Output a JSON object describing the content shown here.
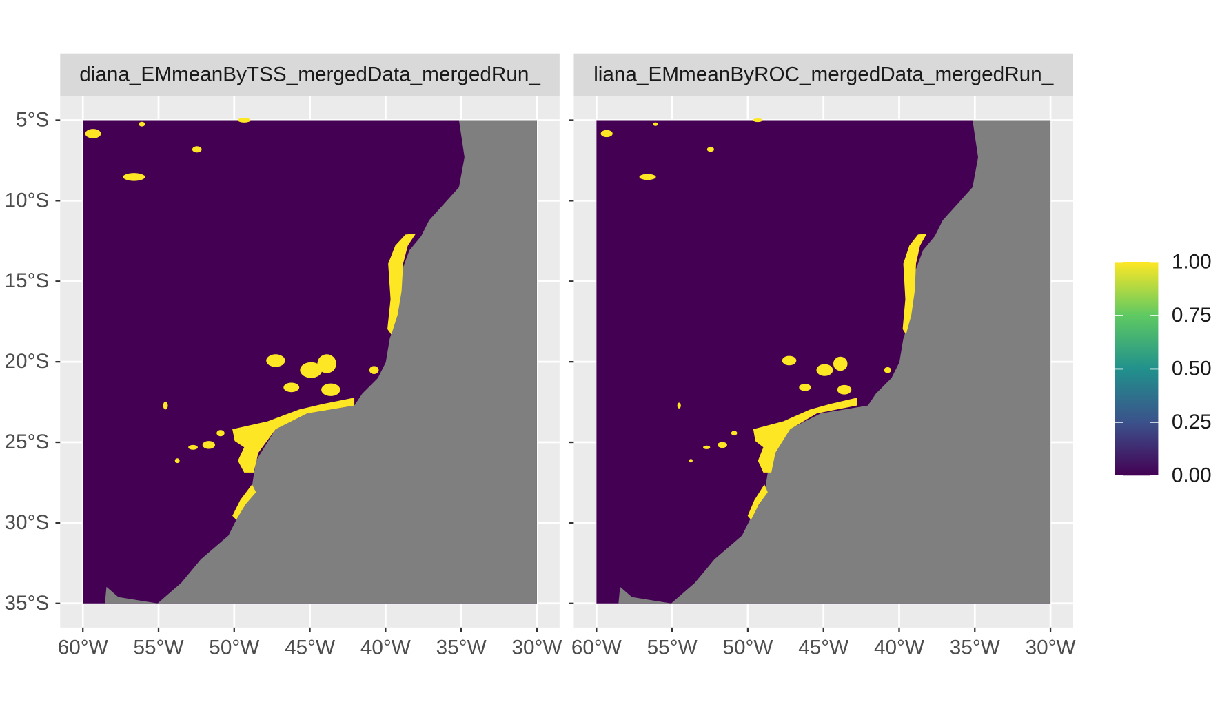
{
  "chart_data": {
    "type": "map",
    "facets": [
      {
        "title": "diana_EMmeanByTSS_mergedData_mergedRun_"
      },
      {
        "title": "liana_EMmeanByROC_mergedData_mergedRun_"
      }
    ],
    "xlim": [
      -61.5,
      -28.5
    ],
    "ylim": [
      -36.5,
      -3.5
    ],
    "xticks": [
      {
        "value": -60,
        "label": "60°W"
      },
      {
        "value": -55,
        "label": "55°W"
      },
      {
        "value": -50,
        "label": "50°W"
      },
      {
        "value": -45,
        "label": "45°W"
      },
      {
        "value": -40,
        "label": "40°W"
      },
      {
        "value": -35,
        "label": "35°W"
      },
      {
        "value": -30,
        "label": "30°W"
      }
    ],
    "yticks": [
      {
        "value": -5,
        "label": "5°S"
      },
      {
        "value": -10,
        "label": "10°S"
      },
      {
        "value": -15,
        "label": "15°S"
      },
      {
        "value": -20,
        "label": "20°S"
      },
      {
        "value": -25,
        "label": "25°S"
      },
      {
        "value": -30,
        "label": "30°S"
      },
      {
        "value": -35,
        "label": "35°S"
      }
    ],
    "grid": true,
    "land_color": "#440154",
    "presence_color": "#fde725",
    "ocean_color": "#7f7f7f",
    "colorbar": {
      "lim": [
        0,
        1
      ],
      "ticks": [
        {
          "value": 0,
          "label": "0.00"
        },
        {
          "value": 0.25,
          "label": "0.25"
        },
        {
          "value": 0.5,
          "label": "0.50"
        },
        {
          "value": 0.75,
          "label": "0.75"
        },
        {
          "value": 1,
          "label": "1.00"
        }
      ],
      "colors": [
        "#440154",
        "#3b528b",
        "#21918c",
        "#5ec962",
        "#fde725"
      ]
    }
  }
}
